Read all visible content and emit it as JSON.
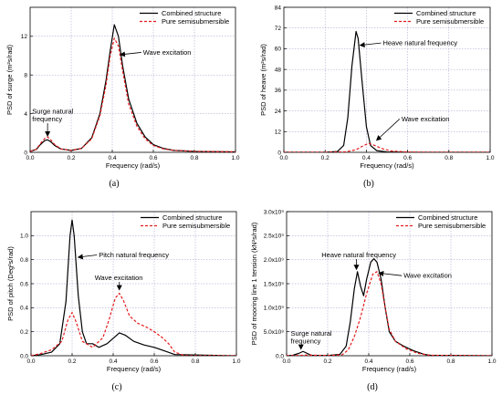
{
  "chart_data": [
    {
      "type": "line",
      "panel_label": "(a)",
      "xlabel": "Frequency (rad/s)",
      "ylabel": "PSD of surge (m²s/rad)",
      "xlim": [
        0,
        1.0
      ],
      "ylim": [
        0,
        15
      ],
      "xticks": [
        "0.0",
        "0.2",
        "0.4",
        "0.6",
        "0.8",
        "1.0"
      ],
      "yticks": [
        "0",
        "4",
        "8",
        "12"
      ],
      "yticks_values": [
        0,
        4,
        8,
        12
      ],
      "grid": true,
      "legend_position": "top-right",
      "series": [
        {
          "name": "Combined structure",
          "color": "#000000",
          "style": "solid",
          "points": [
            [
              0,
              0.1
            ],
            [
              0.03,
              0.3
            ],
            [
              0.05,
              0.8
            ],
            [
              0.07,
              1.2
            ],
            [
              0.085,
              1.3
            ],
            [
              0.1,
              1.1
            ],
            [
              0.12,
              0.7
            ],
            [
              0.15,
              0.35
            ],
            [
              0.2,
              0.2
            ],
            [
              0.25,
              0.4
            ],
            [
              0.3,
              1.5
            ],
            [
              0.34,
              4.0
            ],
            [
              0.37,
              7.5
            ],
            [
              0.39,
              10.5
            ],
            [
              0.41,
              13.2
            ],
            [
              0.43,
              12.0
            ],
            [
              0.45,
              9.0
            ],
            [
              0.48,
              5.5
            ],
            [
              0.52,
              3.0
            ],
            [
              0.56,
              1.6
            ],
            [
              0.6,
              0.8
            ],
            [
              0.65,
              0.4
            ],
            [
              0.7,
              0.2
            ],
            [
              0.8,
              0.1
            ],
            [
              1.0,
              0.05
            ]
          ]
        },
        {
          "name": "Pure semisubmersible",
          "color": "#e41a1c",
          "style": "dashed",
          "points": [
            [
              0,
              0.1
            ],
            [
              0.03,
              0.3
            ],
            [
              0.05,
              0.9
            ],
            [
              0.07,
              1.4
            ],
            [
              0.085,
              1.6
            ],
            [
              0.1,
              1.3
            ],
            [
              0.12,
              0.8
            ],
            [
              0.15,
              0.35
            ],
            [
              0.2,
              0.2
            ],
            [
              0.25,
              0.4
            ],
            [
              0.3,
              1.4
            ],
            [
              0.34,
              3.8
            ],
            [
              0.37,
              7.0
            ],
            [
              0.39,
              10.0
            ],
            [
              0.41,
              11.8
            ],
            [
              0.43,
              11.0
            ],
            [
              0.45,
              8.5
            ],
            [
              0.48,
              5.0
            ],
            [
              0.52,
              2.7
            ],
            [
              0.56,
              1.4
            ],
            [
              0.6,
              0.7
            ],
            [
              0.65,
              0.35
            ],
            [
              0.7,
              0.2
            ],
            [
              0.8,
              0.1
            ],
            [
              1.0,
              0.05
            ]
          ]
        }
      ],
      "annotations": [
        {
          "lines": [
            "Wave excitation"
          ],
          "text_at": [
            0.55,
            10.1
          ],
          "arrow_to": [
            0.44,
            10.1
          ]
        },
        {
          "lines": [
            "Surge natural",
            "frequency"
          ],
          "text_at": [
            0.01,
            4.0
          ],
          "arrow_to": [
            0.085,
            1.7
          ]
        }
      ]
    },
    {
      "type": "line",
      "panel_label": "(b)",
      "xlabel": "Frequency (rad/s)",
      "ylabel": "PSD of heave (m²s/rad)",
      "xlim": [
        0,
        1.0
      ],
      "ylim": [
        0,
        84
      ],
      "xticks": [
        "0.0",
        "0.2",
        "0.4",
        "0.6",
        "0.8",
        "1.0"
      ],
      "yticks": [
        "0",
        "12",
        "24",
        "36",
        "48",
        "60",
        "72",
        "84"
      ],
      "yticks_values": [
        0,
        12,
        24,
        36,
        48,
        60,
        72,
        84
      ],
      "grid": true,
      "legend_position": "top-right",
      "series": [
        {
          "name": "Combined structure",
          "color": "#000000",
          "style": "solid",
          "points": [
            [
              0,
              0
            ],
            [
              0.2,
              0
            ],
            [
              0.26,
              0.5
            ],
            [
              0.29,
              4
            ],
            [
              0.31,
              20
            ],
            [
              0.33,
              50
            ],
            [
              0.35,
              70
            ],
            [
              0.36,
              66
            ],
            [
              0.38,
              40
            ],
            [
              0.4,
              15
            ],
            [
              0.42,
              4
            ],
            [
              0.45,
              1
            ],
            [
              0.5,
              0.2
            ],
            [
              0.6,
              0
            ],
            [
              1.0,
              0
            ]
          ]
        },
        {
          "name": "Pure semisubmersible",
          "color": "#e41a1c",
          "style": "dashed",
          "points": [
            [
              0,
              0
            ],
            [
              0.2,
              0
            ],
            [
              0.3,
              0.3
            ],
            [
              0.35,
              1.5
            ],
            [
              0.38,
              3.5
            ],
            [
              0.41,
              5.2
            ],
            [
              0.44,
              4
            ],
            [
              0.48,
              2
            ],
            [
              0.52,
              0.8
            ],
            [
              0.6,
              0.2
            ],
            [
              0.7,
              0
            ],
            [
              1.0,
              0
            ]
          ]
        }
      ],
      "annotations": [
        {
          "lines": [
            "Heave natural frequency"
          ],
          "text_at": [
            0.48,
            62
          ],
          "arrow_to": [
            0.37,
            62
          ]
        },
        {
          "lines": [
            "Wave excitation"
          ],
          "text_at": [
            0.57,
            18
          ],
          "arrow_to": [
            0.45,
            7
          ]
        }
      ]
    },
    {
      "type": "line",
      "panel_label": "(c)",
      "xlabel": "Frequency (rad/s)",
      "ylabel": "PSD of pitch (Deg²s/rad)",
      "xlim": [
        0,
        1.0
      ],
      "ylim": [
        0,
        1.2
      ],
      "xticks": [
        "0.0",
        "0.2",
        "0.4",
        "0.6",
        "0.8",
        "1.0"
      ],
      "yticks": [
        "0.0",
        "0.2",
        "0.4",
        "0.6",
        "0.8",
        "1.0"
      ],
      "yticks_values": [
        0,
        0.2,
        0.4,
        0.6,
        0.8,
        1.0
      ],
      "grid": true,
      "legend_position": "top-right",
      "series": [
        {
          "name": "Combined structure",
          "color": "#000000",
          "style": "solid",
          "points": [
            [
              0,
              0
            ],
            [
              0.05,
              0.01
            ],
            [
              0.1,
              0.03
            ],
            [
              0.14,
              0.1
            ],
            [
              0.17,
              0.45
            ],
            [
              0.19,
              1.0
            ],
            [
              0.2,
              1.13
            ],
            [
              0.21,
              1.0
            ],
            [
              0.23,
              0.5
            ],
            [
              0.25,
              0.2
            ],
            [
              0.27,
              0.1
            ],
            [
              0.3,
              0.1
            ],
            [
              0.33,
              0.07
            ],
            [
              0.37,
              0.1
            ],
            [
              0.41,
              0.16
            ],
            [
              0.43,
              0.19
            ],
            [
              0.46,
              0.17
            ],
            [
              0.5,
              0.12
            ],
            [
              0.55,
              0.09
            ],
            [
              0.6,
              0.07
            ],
            [
              0.65,
              0.04
            ],
            [
              0.7,
              0.01
            ],
            [
              1.0,
              0
            ]
          ]
        },
        {
          "name": "Pure semisubmersible",
          "color": "#e41a1c",
          "style": "dashed",
          "points": [
            [
              0,
              0
            ],
            [
              0.05,
              0.02
            ],
            [
              0.1,
              0.05
            ],
            [
              0.15,
              0.12
            ],
            [
              0.18,
              0.3
            ],
            [
              0.2,
              0.36
            ],
            [
              0.22,
              0.28
            ],
            [
              0.25,
              0.12
            ],
            [
              0.3,
              0.07
            ],
            [
              0.35,
              0.15
            ],
            [
              0.38,
              0.3
            ],
            [
              0.41,
              0.48
            ],
            [
              0.43,
              0.52
            ],
            [
              0.45,
              0.46
            ],
            [
              0.48,
              0.33
            ],
            [
              0.52,
              0.27
            ],
            [
              0.56,
              0.24
            ],
            [
              0.6,
              0.2
            ],
            [
              0.64,
              0.15
            ],
            [
              0.67,
              0.1
            ],
            [
              0.7,
              0.03
            ],
            [
              0.75,
              0
            ],
            [
              1.0,
              0
            ]
          ]
        }
      ],
      "annotations": [
        {
          "lines": [
            "Pitch natural frequency"
          ],
          "text_at": [
            0.33,
            0.82
          ],
          "arrow_to": [
            0.23,
            0.82
          ]
        },
        {
          "lines": [
            "Wave excitation"
          ],
          "text_at": [
            0.31,
            0.63
          ],
          "arrow_to": [
            0.43,
            0.55
          ]
        }
      ]
    },
    {
      "type": "line",
      "panel_label": "(d)",
      "xlabel": "Frequency (rad/s)",
      "ylabel": "PSD of mooring line 1 tension (kN²s/rad)",
      "xlim": [
        0,
        1.0
      ],
      "ylim": [
        0,
        3000000000.0
      ],
      "xticks": [
        "0.0",
        "0.2",
        "0.4",
        "0.6",
        "0.8",
        "1.0"
      ],
      "yticks": [
        "0.0",
        "5.0x10⁸",
        "1.0x10⁹",
        "1.5x10⁹",
        "2.0x10⁹",
        "2.5x10⁹",
        "3.0x10⁹"
      ],
      "yticks_values": [
        0,
        500000000.0,
        1000000000.0,
        1500000000.0,
        2000000000.0,
        2500000000.0,
        3000000000.0
      ],
      "grid": true,
      "legend_position": "top-right",
      "series": [
        {
          "name": "Combined structure",
          "color": "#000000",
          "style": "solid",
          "points": [
            [
              0,
              0
            ],
            [
              0.03,
              10000000.0
            ],
            [
              0.06,
              50000000.0
            ],
            [
              0.08,
              90000000.0
            ],
            [
              0.1,
              50000000.0
            ],
            [
              0.12,
              10000000.0
            ],
            [
              0.2,
              5000000.0
            ],
            [
              0.26,
              30000000.0
            ],
            [
              0.29,
              200000000.0
            ],
            [
              0.31,
              700000000.0
            ],
            [
              0.33,
              1400000000.0
            ],
            [
              0.345,
              1750000000.0
            ],
            [
              0.36,
              1450000000.0
            ],
            [
              0.375,
              1250000000.0
            ],
            [
              0.39,
              1600000000.0
            ],
            [
              0.41,
              1950000000.0
            ],
            [
              0.425,
              2020000000.0
            ],
            [
              0.44,
              1950000000.0
            ],
            [
              0.46,
              1600000000.0
            ],
            [
              0.48,
              1000000000.0
            ],
            [
              0.5,
              500000000.0
            ],
            [
              0.53,
              300000000.0
            ],
            [
              0.57,
              200000000.0
            ],
            [
              0.62,
              100000000.0
            ],
            [
              0.67,
              30000000.0
            ],
            [
              0.7,
              10000000.0
            ],
            [
              1.0,
              0
            ]
          ]
        },
        {
          "name": "Pure semisubmersible",
          "color": "#e41a1c",
          "style": "dashed",
          "points": [
            [
              0,
              0
            ],
            [
              0.05,
              5000000.0
            ],
            [
              0.1,
              15000000.0
            ],
            [
              0.2,
              5000000.0
            ],
            [
              0.27,
              20000000.0
            ],
            [
              0.3,
              120000000.0
            ],
            [
              0.33,
              400000000.0
            ],
            [
              0.36,
              800000000.0
            ],
            [
              0.39,
              1300000000.0
            ],
            [
              0.42,
              1700000000.0
            ],
            [
              0.44,
              1750000000.0
            ],
            [
              0.46,
              1500000000.0
            ],
            [
              0.48,
              1000000000.0
            ],
            [
              0.5,
              550000000.0
            ],
            [
              0.53,
              300000000.0
            ],
            [
              0.58,
              150000000.0
            ],
            [
              0.64,
              50000000.0
            ],
            [
              0.7,
              10000000.0
            ],
            [
              1.0,
              0
            ]
          ]
        }
      ],
      "annotations": [
        {
          "lines": [
            "Heave natural frequency"
          ],
          "text_at": [
            0.17,
            2050000000.0
          ],
          "arrow_to": [
            0.34,
            1800000000.0
          ]
        },
        {
          "lines": [
            "Wave excitation"
          ],
          "text_at": [
            0.57,
            1620000000.0
          ],
          "arrow_to": [
            0.45,
            1720000000.0
          ]
        },
        {
          "lines": [
            "Surge natural",
            "frequency"
          ],
          "text_at": [
            0.02,
            420000000.0
          ],
          "arrow_to": [
            0.07,
            140000000.0
          ]
        }
      ]
    }
  ]
}
